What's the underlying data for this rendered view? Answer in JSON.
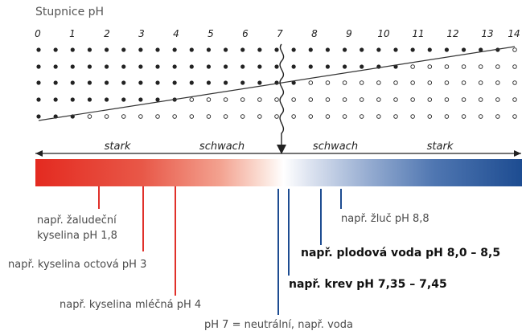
{
  "scale_title": "Stupnice pH",
  "ticks": [
    "0",
    "1",
    "2",
    "3",
    "4",
    "5",
    "6",
    "7",
    "8",
    "9",
    "10",
    "11",
    "12",
    "13",
    "14"
  ],
  "zones": {
    "left_strong": "stark",
    "left_weak": "schwach",
    "right_weak": "schwach",
    "right_strong": "stark"
  },
  "examples": {
    "stomach_line1": "např. žaludeční",
    "stomach_line2": "kyselina pH 1,8",
    "acetic": "např. kyselina octová pH 3",
    "lactic": "např. kyselina mléčná pH 4",
    "neutral": "pH 7 = neutrální, např. voda",
    "blood": "např. krev  pH 7,35 – 7,45",
    "amniotic": "např. plodová voda pH 8,0 – 8,5",
    "bile": "např. žluč pH 8,8"
  },
  "colors": {
    "acid_marker": "#e0302a",
    "base_marker": "#1d4c91",
    "dot": "#222222"
  }
}
